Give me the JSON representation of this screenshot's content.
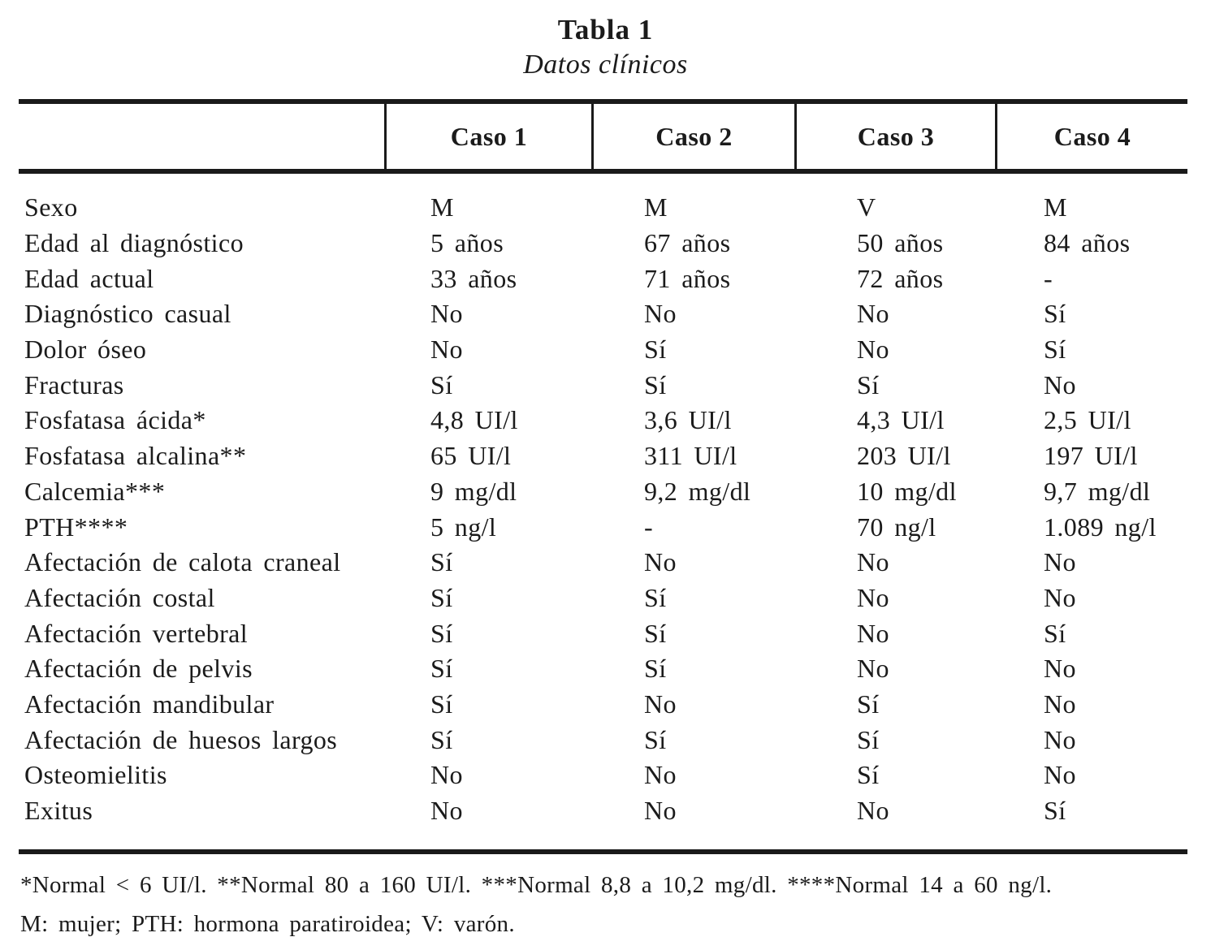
{
  "table": {
    "title": "Tabla 1",
    "subtitle": "Datos clínicos",
    "columns": [
      "",
      "Caso 1",
      "Caso 2",
      "Caso 3",
      "Caso 4"
    ],
    "rows": [
      {
        "label": "Sexo",
        "values": [
          "M",
          "M",
          "V",
          "M"
        ]
      },
      {
        "label": "Edad al diagnóstico",
        "values": [
          "5 años",
          "67 años",
          "50 años",
          "84 años"
        ]
      },
      {
        "label": "Edad actual",
        "values": [
          "33 años",
          "71 años",
          "72 años",
          "-"
        ]
      },
      {
        "label": "Diagnóstico casual",
        "values": [
          "No",
          "No",
          "No",
          "Sí"
        ]
      },
      {
        "label": "Dolor óseo",
        "values": [
          "No",
          "Sí",
          "No",
          "Sí"
        ]
      },
      {
        "label": "Fracturas",
        "values": [
          "Sí",
          "Sí",
          "Sí",
          "No"
        ]
      },
      {
        "label": "Fosfatasa ácida*",
        "values": [
          "4,8 UI/l",
          "3,6 UI/l",
          "4,3 UI/l",
          "2,5 UI/l"
        ]
      },
      {
        "label": "Fosfatasa alcalina**",
        "values": [
          "65 UI/l",
          "311 UI/l",
          "203 UI/l",
          "197 UI/l"
        ]
      },
      {
        "label": "Calcemia***",
        "values": [
          "9 mg/dl",
          "9,2 mg/dl",
          "10 mg/dl",
          "9,7 mg/dl"
        ]
      },
      {
        "label": "PTH****",
        "values": [
          "5 ng/l",
          "-",
          "70 ng/l",
          "1.089 ng/l"
        ]
      },
      {
        "label": "Afectación de calota craneal",
        "values": [
          "Sí",
          "No",
          "No",
          "No"
        ]
      },
      {
        "label": "Afectación costal",
        "values": [
          "Sí",
          "Sí",
          "No",
          "No"
        ]
      },
      {
        "label": "Afectación vertebral",
        "values": [
          "Sí",
          "Sí",
          "No",
          "Sí"
        ]
      },
      {
        "label": "Afectación de pelvis",
        "values": [
          "Sí",
          "Sí",
          "No",
          "No"
        ]
      },
      {
        "label": "Afectación mandibular",
        "values": [
          "Sí",
          "No",
          "Sí",
          "No"
        ]
      },
      {
        "label": "Afectación de huesos largos",
        "values": [
          "Sí",
          "Sí",
          "Sí",
          "No"
        ]
      },
      {
        "label": "Osteomielitis",
        "values": [
          "No",
          "No",
          "Sí",
          "No"
        ]
      },
      {
        "label": "Exitus",
        "values": [
          "No",
          "No",
          "No",
          "Sí"
        ]
      }
    ],
    "footnotes": [
      "*Normal < 6 UI/l. **Normal 80 a 160 UI/l. ***Normal 8,8 a 10,2 mg/dl. ****Normal 14 a 60 ng/l.",
      "M: mujer; PTH: hormona paratiroidea; V: varón."
    ]
  },
  "colors": {
    "text": "#1b1b1b",
    "rule": "#1a1a1a",
    "background": "#ffffff"
  }
}
